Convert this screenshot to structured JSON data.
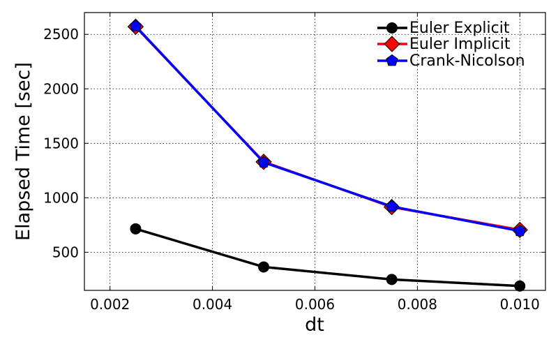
{
  "chart_data": {
    "type": "line",
    "xlabel": "dt",
    "ylabel": "Elapsed Time [sec]",
    "xlim": [
      0.0015,
      0.0105
    ],
    "ylim": [
      150,
      2700
    ],
    "x": [
      0.0025,
      0.005,
      0.0075,
      0.01
    ],
    "xticks": [
      0.002,
      0.004,
      0.006,
      0.008,
      0.01
    ],
    "xtick_labels": [
      "0.002",
      "0.004",
      "0.006",
      "0.008",
      "0.010"
    ],
    "yticks": [
      500,
      1000,
      1500,
      2000,
      2500
    ],
    "ytick_labels": [
      "500",
      "1000",
      "1500",
      "2000",
      "2500"
    ],
    "grid": true,
    "legend_position": "top-right",
    "series": [
      {
        "name": "Euler Explicit",
        "values": [
          715,
          365,
          250,
          190
        ],
        "color": "#000000",
        "marker": "circle"
      },
      {
        "name": "Euler Implicit",
        "values": [
          2570,
          1330,
          915,
          705
        ],
        "color": "#ff0000",
        "marker": "diamond"
      },
      {
        "name": "Crank-Nicolson",
        "values": [
          2575,
          1325,
          920,
          695
        ],
        "color": "#0000ff",
        "marker": "pentagon"
      }
    ]
  }
}
